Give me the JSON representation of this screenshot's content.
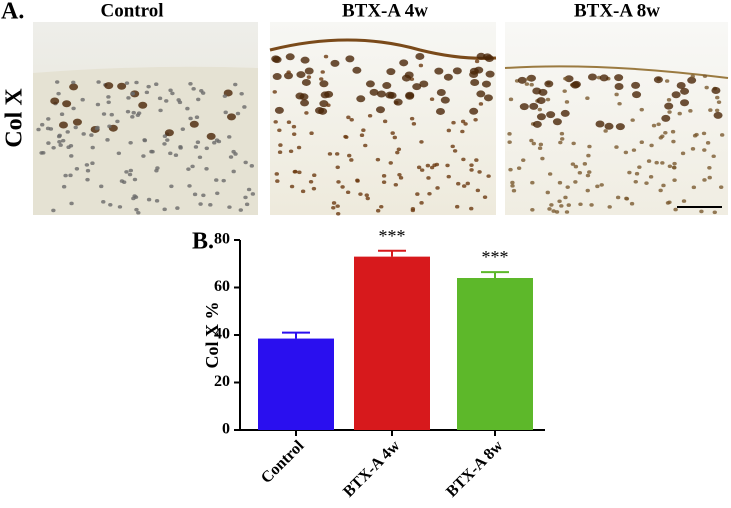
{
  "panel_a": {
    "label": "A.",
    "row_label": "Col X",
    "columns": [
      "Control",
      "BTX-A 4w",
      "BTX-A 8w"
    ]
  },
  "chart_data": {
    "type": "bar",
    "panel_label": "B.",
    "ylabel": "Col X %",
    "categories": [
      "Control",
      "BTX-A 4w",
      "BTX-A 8w"
    ],
    "values": [
      38.5,
      73,
      64
    ],
    "errors": [
      2.5,
      2.5,
      2.5
    ],
    "colors": [
      "#2a0fef",
      "#d7191c",
      "#5db82a"
    ],
    "annotations": [
      null,
      "***",
      "***"
    ],
    "ylim": [
      0,
      80
    ],
    "yticks": [
      0,
      20,
      40,
      60,
      80
    ],
    "grid": false
  }
}
